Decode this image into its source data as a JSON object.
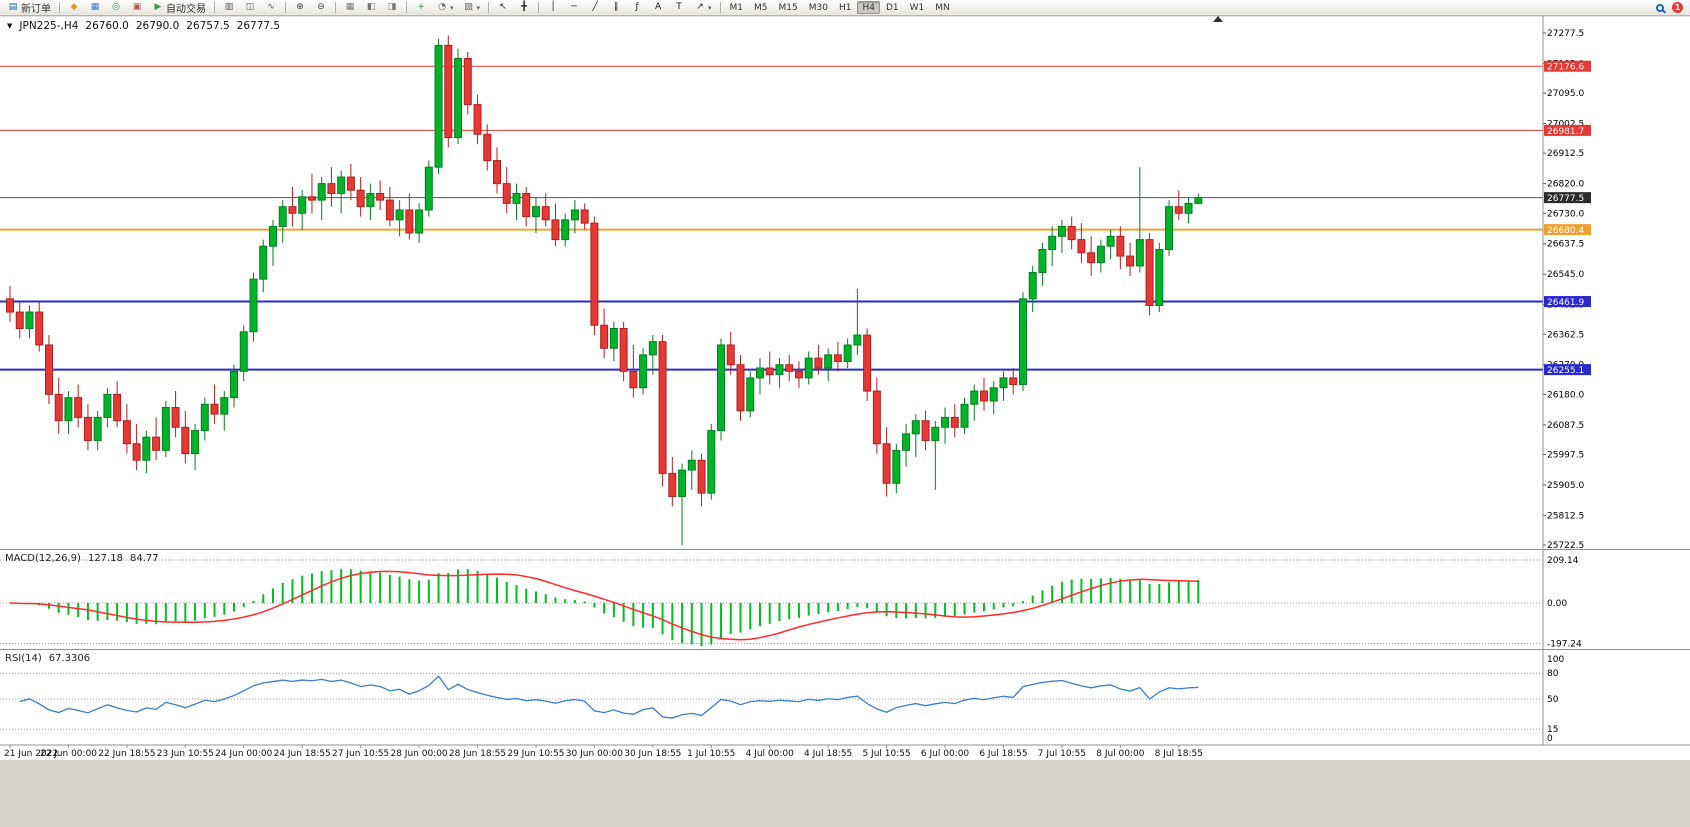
{
  "toolbar": {
    "items": [
      {
        "type": "btn",
        "name": "new-order-button",
        "glyph": "▤",
        "color": "#1565c0",
        "label": "新订单"
      },
      {
        "type": "sep"
      },
      {
        "type": "icon",
        "name": "market-watch-icon",
        "glyph": "◆",
        "color": "#d99f1e"
      },
      {
        "type": "icon",
        "name": "data-window-icon",
        "glyph": "▦",
        "color": "#4472c4"
      },
      {
        "type": "icon",
        "name": "navigator-icon",
        "glyph": "◎",
        "color": "#2f9e44"
      },
      {
        "type": "icon",
        "name": "terminal-icon",
        "glyph": "▣",
        "color": "#c0504d"
      },
      {
        "type": "btn",
        "name": "autotrade-button",
        "glyph": "▶",
        "color": "#2f9e44",
        "label": "自动交易"
      },
      {
        "type": "sep"
      },
      {
        "type": "icon",
        "name": "bar-chart-type-icon",
        "glyph": "▥",
        "color": "#555555"
      },
      {
        "type": "icon",
        "name": "candlestick-type-icon",
        "glyph": "◫",
        "color": "#555555"
      },
      {
        "type": "icon",
        "name": "line-chart-type-icon",
        "glyph": "∿",
        "color": "#555555"
      },
      {
        "type": "sep"
      },
      {
        "type": "icon",
        "name": "zoom-in-icon",
        "glyph": "⊕",
        "color": "#444444"
      },
      {
        "type": "icon",
        "name": "zoom-out-icon",
        "glyph": "⊖",
        "color": "#444444"
      },
      {
        "type": "sep"
      },
      {
        "type": "icon",
        "name": "tile-windows-icon",
        "glyph": "▦",
        "color": "#777777"
      },
      {
        "type": "icon",
        "name": "cascade-windows-icon",
        "glyph": "◧",
        "color": "#777777"
      },
      {
        "type": "icon",
        "name": "arrange-windows-icon",
        "glyph": "◨",
        "color": "#777777"
      },
      {
        "type": "sep"
      },
      {
        "type": "icon",
        "name": "add-indicator-icon",
        "glyph": "+",
        "color": "#2f9e44"
      },
      {
        "type": "icon",
        "name": "period-icon",
        "glyph": "◔",
        "color": "#666666",
        "dropdown": true
      },
      {
        "type": "icon",
        "name": "template-icon",
        "glyph": "▨",
        "color": "#666666",
        "dropdown": true
      },
      {
        "type": "sep"
      },
      {
        "type": "icon",
        "name": "cursor-icon",
        "glyph": "↖",
        "color": "#222222"
      },
      {
        "type": "icon",
        "name": "crosshair-icon",
        "glyph": "╋",
        "color": "#222222"
      },
      {
        "type": "sep"
      },
      {
        "type": "icon",
        "name": "vertical-line-icon",
        "glyph": "│",
        "color": "#222222"
      },
      {
        "type": "icon",
        "name": "horizontal-line-icon",
        "glyph": "─",
        "color": "#222222"
      },
      {
        "type": "icon",
        "name": "trendline-icon",
        "glyph": "╱",
        "color": "#222222"
      },
      {
        "type": "icon",
        "name": "channel-icon",
        "glyph": "∥",
        "color": "#222222"
      },
      {
        "type": "icon",
        "name": "fibonacci-icon",
        "glyph": "ƒ",
        "color": "#222222"
      },
      {
        "type": "icon",
        "name": "text-icon",
        "glyph": "A",
        "color": "#222222"
      },
      {
        "type": "icon",
        "name": "label-icon",
        "glyph": "T",
        "color": "#222222"
      },
      {
        "type": "icon",
        "name": "arrows-icon",
        "glyph": "↗",
        "color": "#222222",
        "dropdown": true
      },
      {
        "type": "sep"
      },
      {
        "type": "tf"
      },
      {
        "type": "flex"
      },
      {
        "type": "search",
        "name": "search-icon"
      },
      {
        "type": "badge",
        "name": "notification-badge",
        "label": "1"
      }
    ],
    "timeframes": [
      "M1",
      "M5",
      "M15",
      "M30",
      "H1",
      "H4",
      "D1",
      "W1",
      "MN"
    ],
    "active_timeframe": "H4"
  },
  "chart_header": {
    "marker": "▼",
    "symbol": "JPN225-,H4",
    "open": "26760.0",
    "high": "26790.0",
    "low": "26757.5",
    "close": "26777.5"
  },
  "macd": {
    "title": "MACD(12,26,9)",
    "main_value": "127.18",
    "signal_value": "84.77",
    "axis_labels": [
      "209.14",
      "0.00",
      "-197.24"
    ],
    "params": {
      "fast": 12,
      "slow": 26,
      "signal": 9
    },
    "histogram_color": "#00bf1f",
    "signal_color": "#ff2a2a"
  },
  "rsi": {
    "title": "RSI(14)",
    "value": "67.3306",
    "period": 14,
    "axis_labels": [
      "100",
      "80",
      "50",
      "15",
      "0"
    ],
    "levels": [
      80,
      50,
      15
    ],
    "line_color": "#3d7dca"
  },
  "chart_data": {
    "type": "candlestick",
    "symbol": "JPN225-",
    "timeframe": "H4",
    "up_color": "#00b42a",
    "down_color": "#e53935",
    "up_border": "#067d22",
    "down_border": "#b02020",
    "ylim": [
      25722.5,
      27277.5
    ],
    "y_ticks": [
      27277.5,
      27185.0,
      27095.0,
      27002.5,
      26912.5,
      26820.0,
      26730.0,
      26637.5,
      26545.0,
      26452.5,
      26362.5,
      26270.0,
      26180.0,
      26087.5,
      25997.5,
      25905.0,
      25812.5,
      25722.5
    ],
    "price_lines": [
      {
        "value": 27176.6,
        "color": "#e53935",
        "width": 1,
        "name": "resistance-line-upper"
      },
      {
        "value": 26981.7,
        "color": "#e53935",
        "width": 1,
        "name": "resistance-line-lower"
      },
      {
        "value": 26777.5,
        "color": "#555555",
        "width": 1,
        "tag": "#2b2b2b",
        "name": "current-price-line"
      },
      {
        "value": 26680.4,
        "color": "#f0a030",
        "width": 2,
        "name": "orange-level-line"
      },
      {
        "value": 26461.9,
        "color": "#2929cc",
        "width": 2,
        "name": "support-line-upper"
      },
      {
        "value": 26255.1,
        "color": "#2929cc",
        "width": 2,
        "name": "support-line-lower"
      }
    ],
    "x_labels": [
      "21 Jun 2022",
      "22 Jun 00:00",
      "22 Jun 18:55",
      "23 Jun 10:55",
      "24 Jun 00:00",
      "24 Jun 18:55",
      "27 Jun 10:55",
      "28 Jun 00:00",
      "28 Jun 18:55",
      "29 Jun 10:55",
      "30 Jun 00:00",
      "30 Jun 18:55",
      "1 Jul 10:55",
      "4 Jul 00:00",
      "4 Jul 18:55",
      "5 Jul 10:55",
      "6 Jul 00:00",
      "6 Jul 18:55",
      "7 Jul 10:55",
      "8 Jul 00:00",
      "8 Jul 18:55"
    ],
    "x_label_every": 6,
    "ohlc": [
      [
        26470,
        26510,
        26400,
        26430
      ],
      [
        26430,
        26460,
        26350,
        26380
      ],
      [
        26380,
        26450,
        26350,
        26430
      ],
      [
        26430,
        26460,
        26310,
        26330
      ],
      [
        26330,
        26360,
        26150,
        26180
      ],
      [
        26180,
        26230,
        26060,
        26100
      ],
      [
        26100,
        26190,
        26060,
        26170
      ],
      [
        26170,
        26210,
        26080,
        26110
      ],
      [
        26110,
        26150,
        26010,
        26040
      ],
      [
        26040,
        26130,
        26010,
        26110
      ],
      [
        26110,
        26200,
        26080,
        26180
      ],
      [
        26180,
        26220,
        26080,
        26100
      ],
      [
        26100,
        26150,
        26000,
        26030
      ],
      [
        26030,
        26090,
        25950,
        25980
      ],
      [
        25980,
        26070,
        25940,
        26050
      ],
      [
        26050,
        26110,
        25980,
        26010
      ],
      [
        26010,
        26160,
        25990,
        26140
      ],
      [
        26140,
        26190,
        26050,
        26080
      ],
      [
        26080,
        26130,
        25970,
        26000
      ],
      [
        26000,
        26090,
        25950,
        26070
      ],
      [
        26070,
        26170,
        26040,
        26150
      ],
      [
        26150,
        26210,
        26090,
        26120
      ],
      [
        26120,
        26190,
        26070,
        26170
      ],
      [
        26170,
        26270,
        26140,
        26250
      ],
      [
        26250,
        26390,
        26220,
        26370
      ],
      [
        26370,
        26550,
        26340,
        26530
      ],
      [
        26530,
        26650,
        26490,
        26630
      ],
      [
        26630,
        26710,
        26570,
        26690
      ],
      [
        26690,
        26770,
        26640,
        26750
      ],
      [
        26750,
        26810,
        26690,
        26730
      ],
      [
        26730,
        26800,
        26680,
        26780
      ],
      [
        26780,
        26850,
        26730,
        26770
      ],
      [
        26770,
        26840,
        26710,
        26820
      ],
      [
        26820,
        26870,
        26750,
        26790
      ],
      [
        26790,
        26860,
        26730,
        26840
      ],
      [
        26840,
        26880,
        26770,
        26800
      ],
      [
        26800,
        26840,
        26720,
        26750
      ],
      [
        26750,
        26820,
        26710,
        26790
      ],
      [
        26790,
        26830,
        26740,
        26770
      ],
      [
        26770,
        26810,
        26690,
        26710
      ],
      [
        26710,
        26770,
        26660,
        26740
      ],
      [
        26740,
        26790,
        26650,
        26670
      ],
      [
        26670,
        26760,
        26640,
        26740
      ],
      [
        26740,
        26890,
        26720,
        26870
      ],
      [
        26870,
        27260,
        26850,
        27240
      ],
      [
        27240,
        27270,
        26930,
        26960
      ],
      [
        26960,
        27230,
        26940,
        27200
      ],
      [
        27200,
        27220,
        27030,
        27060
      ],
      [
        27060,
        27090,
        26940,
        26970
      ],
      [
        26970,
        27000,
        26860,
        26890
      ],
      [
        26890,
        26930,
        26790,
        26820
      ],
      [
        26820,
        26870,
        26730,
        26760
      ],
      [
        26760,
        26820,
        26710,
        26790
      ],
      [
        26790,
        26810,
        26690,
        26720
      ],
      [
        26720,
        26780,
        26670,
        26750
      ],
      [
        26750,
        26790,
        26690,
        26710
      ],
      [
        26710,
        26760,
        26630,
        26650
      ],
      [
        26650,
        26730,
        26630,
        26710
      ],
      [
        26710,
        26770,
        26670,
        26740
      ],
      [
        26740,
        26760,
        26680,
        26700
      ],
      [
        26700,
        26720,
        26360,
        26390
      ],
      [
        26390,
        26440,
        26290,
        26320
      ],
      [
        26320,
        26400,
        26280,
        26380
      ],
      [
        26380,
        26400,
        26220,
        26250
      ],
      [
        26250,
        26330,
        26170,
        26200
      ],
      [
        26200,
        26320,
        26180,
        26300
      ],
      [
        26300,
        26360,
        26240,
        26340
      ],
      [
        26340,
        26360,
        25900,
        25940
      ],
      [
        25940,
        25990,
        25840,
        25870
      ],
      [
        25870,
        25970,
        25722,
        25950
      ],
      [
        25950,
        26010,
        25890,
        25980
      ],
      [
        25980,
        26000,
        25840,
        25880
      ],
      [
        25880,
        26090,
        25860,
        26070
      ],
      [
        26070,
        26350,
        26040,
        26330
      ],
      [
        26330,
        26370,
        26240,
        26270
      ],
      [
        26270,
        26300,
        26100,
        26130
      ],
      [
        26130,
        26250,
        26110,
        26230
      ],
      [
        26230,
        26290,
        26180,
        26260
      ],
      [
        26260,
        26310,
        26210,
        26240
      ],
      [
        26240,
        26290,
        26200,
        26270
      ],
      [
        26270,
        26300,
        26220,
        26250
      ],
      [
        26250,
        26280,
        26200,
        26230
      ],
      [
        26230,
        26310,
        26210,
        26290
      ],
      [
        26290,
        26330,
        26240,
        26260
      ],
      [
        26260,
        26320,
        26220,
        26300
      ],
      [
        26300,
        26340,
        26250,
        26280
      ],
      [
        26280,
        26350,
        26260,
        26330
      ],
      [
        26330,
        26500,
        26300,
        26360
      ],
      [
        26360,
        26380,
        26160,
        26190
      ],
      [
        26190,
        26230,
        26000,
        26030
      ],
      [
        26030,
        26080,
        25870,
        25910
      ],
      [
        25910,
        26030,
        25880,
        26010
      ],
      [
        26010,
        26090,
        25960,
        26060
      ],
      [
        26060,
        26120,
        25990,
        26100
      ],
      [
        26100,
        26130,
        26010,
        26040
      ],
      [
        26040,
        26100,
        25890,
        26080
      ],
      [
        26080,
        26140,
        26030,
        26110
      ],
      [
        26110,
        26150,
        26050,
        26080
      ],
      [
        26080,
        26170,
        26060,
        26150
      ],
      [
        26150,
        26210,
        26100,
        26190
      ],
      [
        26190,
        26230,
        26130,
        26160
      ],
      [
        26160,
        26220,
        26120,
        26200
      ],
      [
        26200,
        26250,
        26160,
        26230
      ],
      [
        26230,
        26260,
        26180,
        26210
      ],
      [
        26210,
        26490,
        26190,
        26470
      ],
      [
        26470,
        26570,
        26430,
        26550
      ],
      [
        26550,
        26640,
        26510,
        26620
      ],
      [
        26620,
        26690,
        26570,
        26660
      ],
      [
        26660,
        26710,
        26610,
        26690
      ],
      [
        26690,
        26720,
        26620,
        26650
      ],
      [
        26650,
        26700,
        26580,
        26610
      ],
      [
        26610,
        26660,
        26540,
        26580
      ],
      [
        26580,
        26650,
        26550,
        26630
      ],
      [
        26630,
        26680,
        26590,
        26660
      ],
      [
        26660,
        26690,
        26560,
        26600
      ],
      [
        26600,
        26640,
        26540,
        26570
      ],
      [
        26570,
        26870,
        26550,
        26650
      ],
      [
        26650,
        26670,
        26420,
        26450
      ],
      [
        26450,
        26640,
        26430,
        26620
      ],
      [
        26620,
        26770,
        26600,
        26750
      ],
      [
        26750,
        26800,
        26710,
        26730
      ],
      [
        26730,
        26780,
        26700,
        26760
      ],
      [
        26760,
        26790,
        26757.5,
        26777.5
      ]
    ]
  }
}
